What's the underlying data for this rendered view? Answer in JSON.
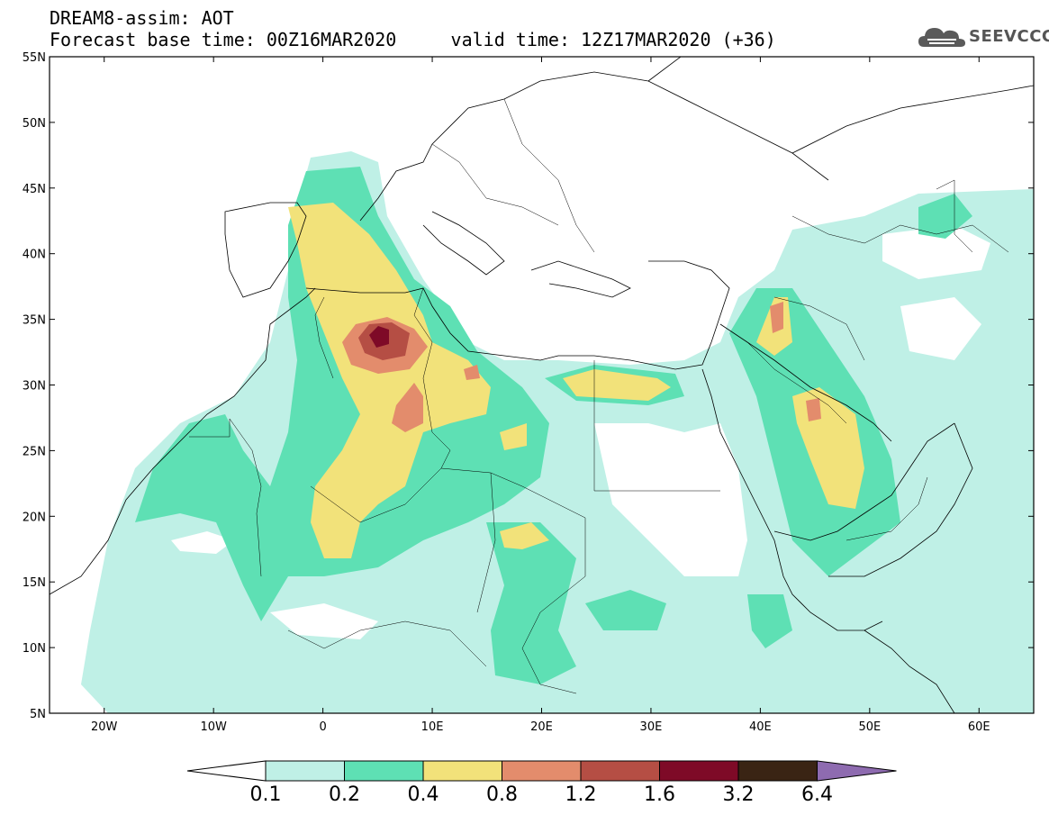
{
  "header": {
    "title": "DREAM8-assim: AOT",
    "base_time": "Forecast base time: 00Z16MAR2020",
    "valid_time": "valid time: 12Z17MAR2020 (+36)",
    "logo_text": "SEEVCCC"
  },
  "map": {
    "variable": "AOT",
    "lon_range": [
      -25,
      65
    ],
    "lat_range": [
      5,
      55
    ],
    "lat_ticks": [
      "5N",
      "10N",
      "15N",
      "20N",
      "25N",
      "30N",
      "35N",
      "40N",
      "45N",
      "50N",
      "55N"
    ],
    "lon_ticks": [
      "20W",
      "10W",
      "0",
      "10E",
      "20E",
      "30E",
      "40E",
      "50E",
      "60E"
    ]
  },
  "colorbar": {
    "levels": [
      "0.1",
      "0.2",
      "0.4",
      "0.8",
      "1.2",
      "1.6",
      "3.2",
      "6.4"
    ],
    "colors": [
      "#ffffff",
      "#bff0e6",
      "#5ee0b4",
      "#f2e27a",
      "#e38c6c",
      "#b54e44",
      "#7e0a27",
      "#3a2414",
      "#8e6bb0"
    ]
  }
}
